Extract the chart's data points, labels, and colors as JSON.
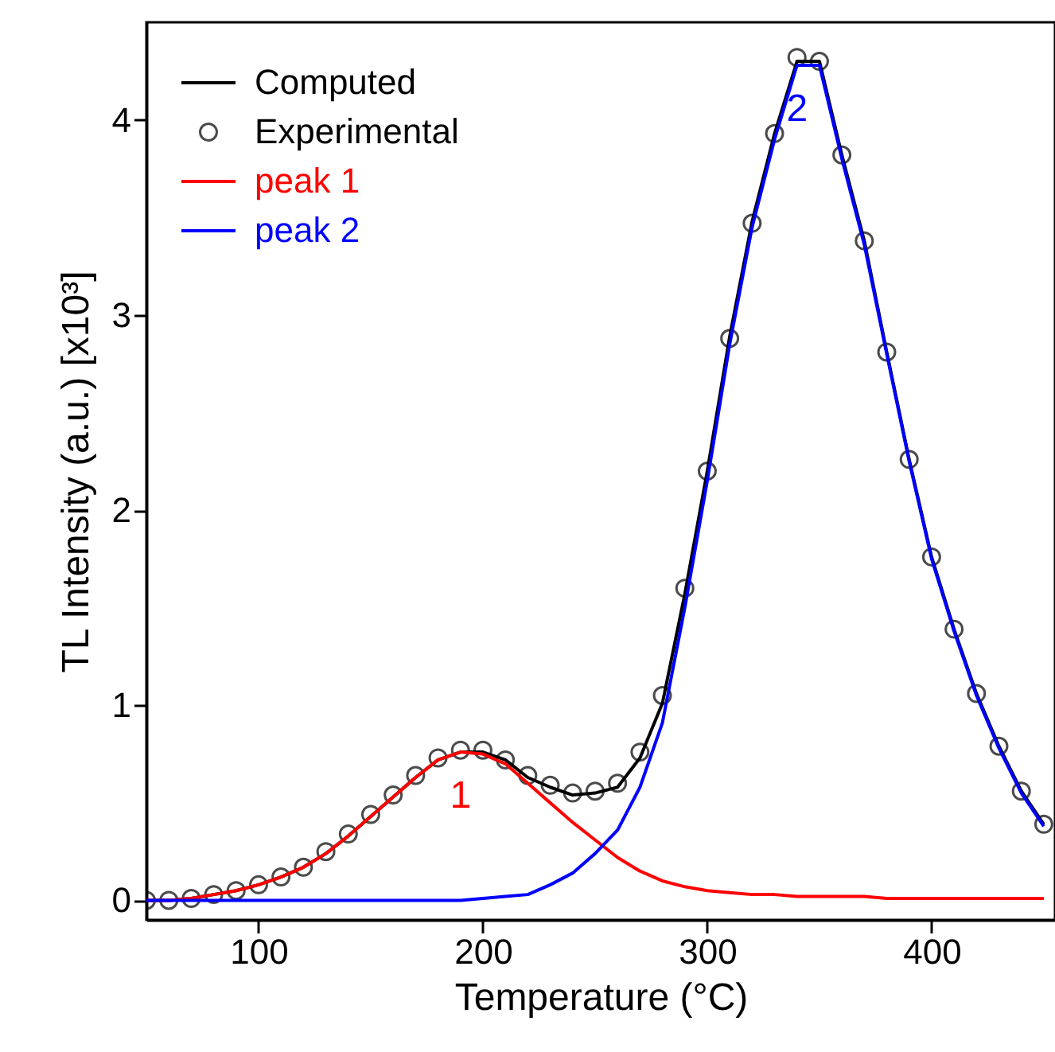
{
  "chart_data": {
    "type": "line",
    "xlabel": "Temperature (°C)",
    "ylabel": "TL Intensity (a.u.) [x10³]",
    "x": [
      50,
      60,
      70,
      80,
      90,
      100,
      110,
      120,
      130,
      140,
      150,
      160,
      170,
      180,
      190,
      200,
      210,
      220,
      230,
      240,
      250,
      260,
      270,
      280,
      290,
      300,
      310,
      320,
      330,
      340,
      350,
      360,
      370,
      380,
      390,
      400,
      410,
      420,
      430,
      440,
      450
    ],
    "series": [
      {
        "name": "Computed",
        "color": "#000000",
        "line_style": "solid",
        "values": [
          0,
          0,
          0.01,
          0.03,
          0.05,
          0.08,
          0.12,
          0.17,
          0.24,
          0.33,
          0.43,
          0.53,
          0.63,
          0.72,
          0.76,
          0.76,
          0.72,
          0.63,
          0.58,
          0.54,
          0.55,
          0.58,
          0.73,
          1.01,
          1.57,
          2.2,
          2.89,
          3.48,
          3.93,
          4.3,
          4.3,
          3.82,
          3.38,
          2.81,
          2.26,
          1.76,
          1.39,
          1.06,
          0.79,
          0.56,
          0.39
        ]
      },
      {
        "name": "Experimental",
        "color": "#000000",
        "type": "scatter",
        "marker": "circle",
        "values": [
          0,
          0,
          0.01,
          0.03,
          0.05,
          0.08,
          0.12,
          0.17,
          0.25,
          0.34,
          0.44,
          0.54,
          0.64,
          0.73,
          0.77,
          0.77,
          0.72,
          0.64,
          0.59,
          0.55,
          0.56,
          0.6,
          0.76,
          1.05,
          1.6,
          2.2,
          2.88,
          3.47,
          3.93,
          4.32,
          4.3,
          3.82,
          3.38,
          2.81,
          2.26,
          1.76,
          1.39,
          1.06,
          0.79,
          0.56,
          0.39
        ]
      },
      {
        "name": "peak 1",
        "color": "#ff0000",
        "line_style": "solid",
        "values": [
          0,
          0,
          0.01,
          0.03,
          0.05,
          0.08,
          0.12,
          0.17,
          0.24,
          0.33,
          0.43,
          0.53,
          0.63,
          0.72,
          0.76,
          0.75,
          0.7,
          0.6,
          0.5,
          0.4,
          0.31,
          0.22,
          0.15,
          0.1,
          0.07,
          0.05,
          0.04,
          0.03,
          0.03,
          0.02,
          0.02,
          0.02,
          0.02,
          0.01,
          0.01,
          0.01,
          0.01,
          0.01,
          0.01,
          0.01,
          0.01
        ]
      },
      {
        "name": "peak 2",
        "color": "#0000ff",
        "line_style": "solid",
        "values": [
          0,
          0,
          0,
          0,
          0,
          0,
          0,
          0,
          0,
          0,
          0,
          0,
          0,
          0,
          0,
          0.01,
          0.02,
          0.03,
          0.08,
          0.14,
          0.24,
          0.36,
          0.58,
          0.91,
          1.5,
          2.15,
          2.85,
          3.45,
          3.9,
          4.28,
          4.28,
          3.8,
          3.36,
          2.8,
          2.25,
          1.75,
          1.38,
          1.05,
          0.78,
          0.55,
          0.38
        ]
      }
    ],
    "annotations": [
      "1",
      "2"
    ],
    "xlim": [
      50,
      455
    ],
    "ylim": [
      -0.1,
      4.5
    ],
    "xticks": [
      100,
      200,
      300,
      400
    ],
    "yticks": [
      0,
      1,
      2,
      3,
      4
    ],
    "grid": false,
    "legend": "top left"
  }
}
